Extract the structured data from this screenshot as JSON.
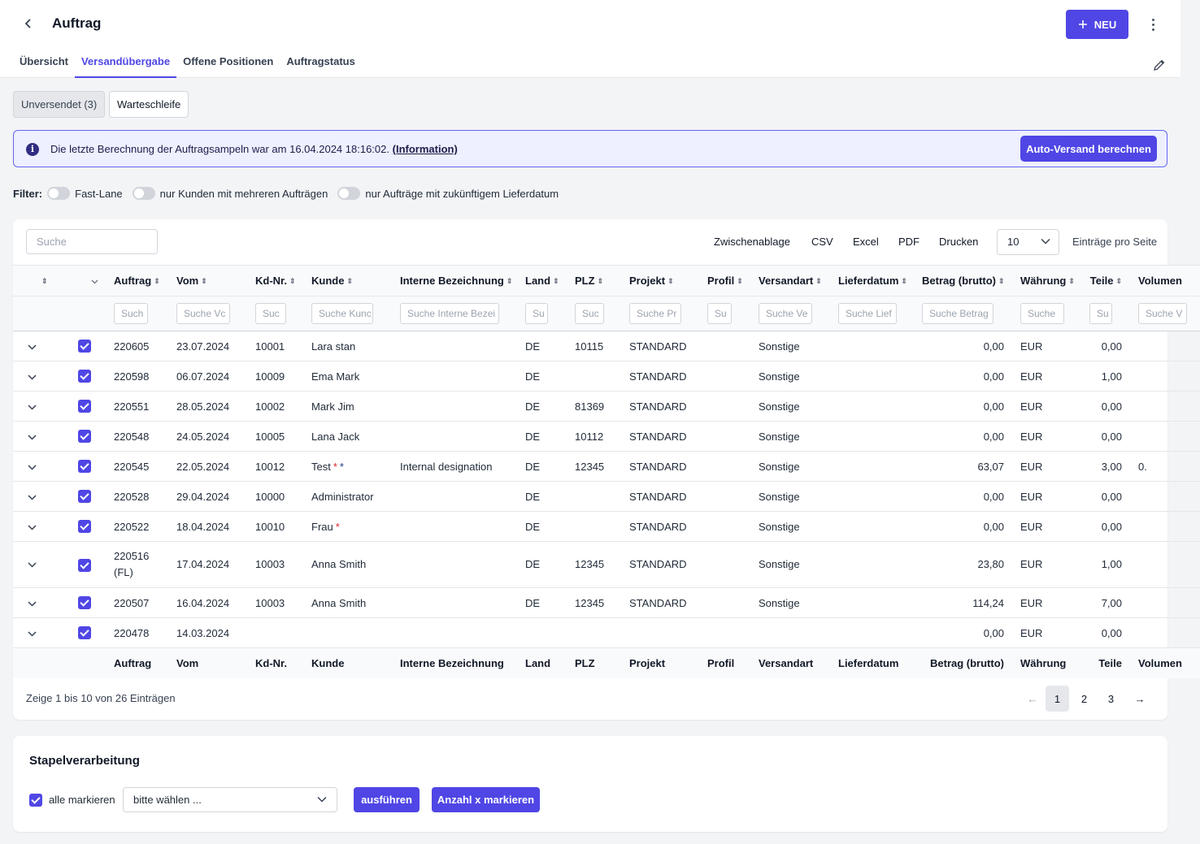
{
  "header": {
    "title": "Auftrag",
    "new_label": "NEU"
  },
  "tabs": [
    {
      "label": "Übersicht"
    },
    {
      "label": "Versandübergabe"
    },
    {
      "label": "Offene Positionen"
    },
    {
      "label": "Auftragstatus"
    }
  ],
  "segments": [
    {
      "label": "Unversendet (3)"
    },
    {
      "label": "Warteschleife"
    }
  ],
  "info": {
    "text": "Die letzte Berechnung der Auftragsampeln war am 16.04.2024 18:16:02.",
    "link": "(Information)",
    "button": "Auto-Versand berechnen"
  },
  "filters": {
    "label": "Filter:",
    "items": [
      {
        "label": "Fast-Lane"
      },
      {
        "label": "nur Kunden mit mehreren Aufträgen"
      },
      {
        "label": "nur Aufträge mit zukünftigem Lieferdatum"
      }
    ]
  },
  "toolbar": {
    "search_placeholder": "Suche",
    "clipboard": "Zwischenablage",
    "csv": "CSV",
    "excel": "Excel",
    "pdf": "PDF",
    "print": "Drucken",
    "per_page_value": "10",
    "per_page_label": "Einträge pro Seite"
  },
  "table": {
    "columns": [
      "Auftrag",
      "Vom",
      "Kd-Nr.",
      "Kunde",
      "Interne Bezeichnung",
      "Land",
      "PLZ",
      "Projekt",
      "Profil",
      "Versandart",
      "Lieferdatum",
      "Betrag (brutto)",
      "Währung",
      "Teile",
      "Volumen"
    ],
    "filter_placeholders": [
      "Such",
      "Suche Vc",
      "Suc",
      "Suche Kunc",
      "Suche Interne Bezei",
      "Su",
      "Suc",
      "Suche Pr",
      "Su",
      "Suche Ve",
      "Suche Lief",
      "Suche Betrag",
      "Suche",
      "Su",
      "Suche V"
    ],
    "rows": [
      {
        "auftrag": "220605",
        "vom": "23.07.2024",
        "kdnr": "10001",
        "kunde": "Lara stan",
        "interne": "",
        "land": "DE",
        "plz": "10115",
        "projekt": "STANDARD",
        "profil": "",
        "versandart": "Sonstige",
        "lieferdatum": "",
        "betrag": "0,00",
        "waehrung": "EUR",
        "teile": "0,00",
        "volumen": ""
      },
      {
        "auftrag": "220598",
        "vom": "06.07.2024",
        "kdnr": "10009",
        "kunde": "Ema Mark",
        "interne": "",
        "land": "DE",
        "plz": "",
        "projekt": "STANDARD",
        "profil": "",
        "versandart": "Sonstige",
        "lieferdatum": "",
        "betrag": "0,00",
        "waehrung": "EUR",
        "teile": "1,00",
        "volumen": ""
      },
      {
        "auftrag": "220551",
        "vom": "28.05.2024",
        "kdnr": "10002",
        "kunde": "Mark Jim",
        "interne": "",
        "land": "DE",
        "plz": "81369",
        "projekt": "STANDARD",
        "profil": "",
        "versandart": "Sonstige",
        "lieferdatum": "",
        "betrag": "0,00",
        "waehrung": "EUR",
        "teile": "0,00",
        "volumen": ""
      },
      {
        "auftrag": "220548",
        "vom": "24.05.2024",
        "kdnr": "10005",
        "kunde": "Lana Jack",
        "interne": "",
        "land": "DE",
        "plz": "10112",
        "projekt": "STANDARD",
        "profil": "",
        "versandart": "Sonstige",
        "lieferdatum": "",
        "betrag": "0,00",
        "waehrung": "EUR",
        "teile": "0,00",
        "volumen": ""
      },
      {
        "auftrag": "220545",
        "vom": "22.05.2024",
        "kdnr": "10012",
        "kunde": "Test",
        "interne": "Internal designation",
        "land": "DE",
        "plz": "12345",
        "projekt": "STANDARD",
        "profil": "",
        "versandart": "Sonstige",
        "lieferdatum": "",
        "betrag": "63,07",
        "waehrung": "EUR",
        "teile": "3,00",
        "volumen": "0."
      },
      {
        "auftrag": "220528",
        "vom": "29.04.2024",
        "kdnr": "10000",
        "kunde": "Administrator",
        "interne": "",
        "land": "DE",
        "plz": "",
        "projekt": "STANDARD",
        "profil": "",
        "versandart": "Sonstige",
        "lieferdatum": "",
        "betrag": "0,00",
        "waehrung": "EUR",
        "teile": "0,00",
        "volumen": ""
      },
      {
        "auftrag": "220522",
        "vom": "18.04.2024",
        "kdnr": "10010",
        "kunde": "Frau",
        "interne": "",
        "land": "DE",
        "plz": "",
        "projekt": "STANDARD",
        "profil": "",
        "versandart": "Sonstige",
        "lieferdatum": "",
        "betrag": "0,00",
        "waehrung": "EUR",
        "teile": "0,00",
        "volumen": ""
      },
      {
        "auftrag": "220516",
        "auftrag2": "(FL)",
        "vom": "17.04.2024",
        "kdnr": "10003",
        "kunde": "Anna Smith",
        "interne": "",
        "land": "DE",
        "plz": "12345",
        "projekt": "STANDARD",
        "profil": "",
        "versandart": "Sonstige",
        "lieferdatum": "",
        "betrag": "23,80",
        "waehrung": "EUR",
        "teile": "1,00",
        "volumen": ""
      },
      {
        "auftrag": "220507",
        "vom": "16.04.2024",
        "kdnr": "10003",
        "kunde": "Anna Smith",
        "interne": "",
        "land": "DE",
        "plz": "12345",
        "projekt": "STANDARD",
        "profil": "",
        "versandart": "Sonstige",
        "lieferdatum": "",
        "betrag": "114,24",
        "waehrung": "EUR",
        "teile": "7,00",
        "volumen": ""
      },
      {
        "auftrag": "220478",
        "vom": "14.03.2024",
        "kdnr": "",
        "kunde": "",
        "interne": "",
        "land": "",
        "plz": "",
        "projekt": "",
        "profil": "",
        "versandart": "",
        "lieferdatum": "",
        "betrag": "0,00",
        "waehrung": "EUR",
        "teile": "0,00",
        "volumen": ""
      }
    ],
    "marker_star": "*"
  },
  "pagination": {
    "info": "Zeige 1 bis 10 von 26 Einträgen",
    "prev": "←",
    "pages": [
      "1",
      "2",
      "3"
    ],
    "next": "→"
  },
  "batch": {
    "title": "Stapelverarbeitung",
    "select_all": "alle markieren",
    "select_placeholder": "bitte wählen ...",
    "execute": "ausführen",
    "mark_count": "Anzahl x markieren"
  },
  "colors": {
    "accent": "#4f46e5",
    "info_bg": "#eef0ff",
    "star_red": "#dc2626",
    "star_blue": "#1e3a8a"
  }
}
